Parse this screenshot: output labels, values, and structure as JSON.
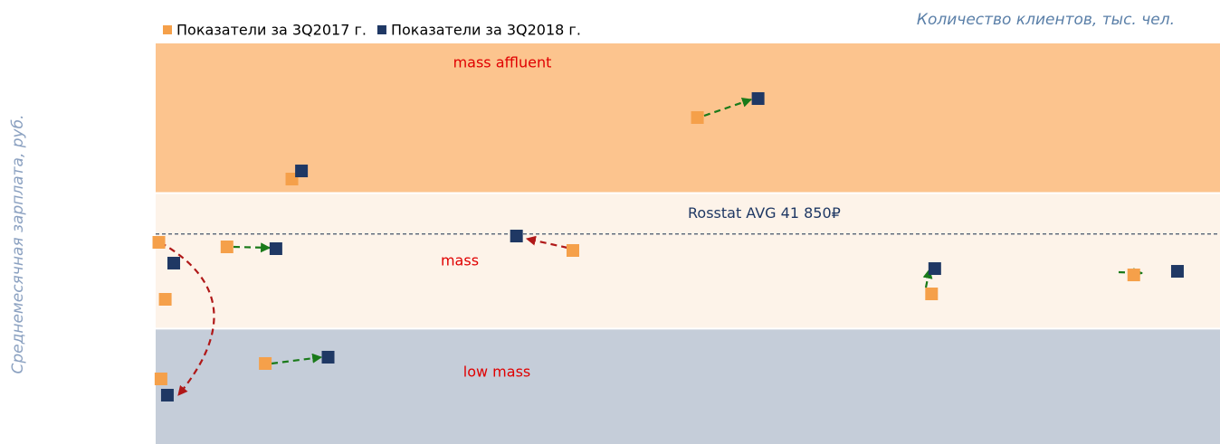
{
  "chart_data": {
    "type": "scatter",
    "xlabel": "Количество клиентов, тыс. чел.",
    "ylabel": "Среднемесячная зарплата, руб.",
    "xlim": [
      0,
      100
    ],
    "ylim": [
      0,
      80000
    ],
    "bands": [
      {
        "label": "mass affluent",
        "from": 50000,
        "to": 80000,
        "color": "#fcc48e"
      },
      {
        "label": "mass",
        "from": 23000,
        "to": 50000,
        "color": "#fdf3e9"
      },
      {
        "label": "low mass",
        "from": 0,
        "to": 23000,
        "color": "#c5cdd9"
      }
    ],
    "reference_line": {
      "label": "Rosstat AVG 41 850₽",
      "value": 41850,
      "color": "#44546a"
    },
    "series": [
      {
        "name": "Показатели за 3Q2017 г.",
        "color": "#f5a04a",
        "x": [
          0.3,
          0.9,
          0.5,
          6.7,
          10.3,
          12.8,
          39.2,
          50.9,
          72.9,
          91.9
        ],
        "y": [
          40180,
          28830,
          12970,
          39280,
          16040,
          52790,
          38560,
          65050,
          29910,
          33690
        ]
      },
      {
        "name": "Показатели за 3Q2018 г.",
        "color": "#1f3864",
        "x": [
          1.1,
          1.7,
          11.3,
          13.7,
          16.2,
          33.9,
          56.6,
          73.2,
          96.0
        ],
        "y": [
          9730,
          36040,
          38920,
          54410,
          17300,
          41440,
          68830,
          34950,
          34410
        ]
      }
    ]
  }
}
